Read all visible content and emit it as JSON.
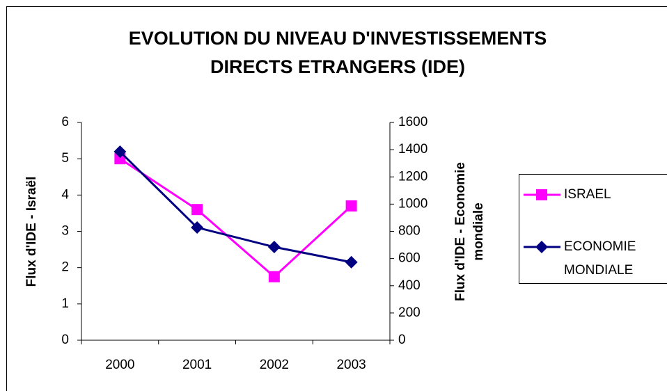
{
  "chart_data": {
    "type": "line",
    "title": [
      "EVOLUTION DU NIVEAU D'INVESTISSEMENTS",
      "DIRECTS ETRANGERS (IDE)"
    ],
    "y_label": "Flux d'IDE - Israël",
    "y2_label": [
      "Flux d'IDE - Economie",
      "mondiale"
    ],
    "categories": [
      "2000",
      "2001",
      "2002",
      "2003"
    ],
    "series": [
      {
        "name": "ISRAEL",
        "color": "#ff00ff",
        "marker": "square",
        "values": [
          5.0,
          3.6,
          1.75,
          3.7
        ]
      },
      {
        "name": "ECONOMIE MONDIALE",
        "color": "#000080",
        "marker": "diamond",
        "axis": "y2",
        "values": [
          1385,
          828,
          685,
          573
        ]
      }
    ],
    "ylim": [
      0,
      6
    ],
    "yticks": [
      0,
      1,
      2,
      3,
      4,
      5,
      6
    ],
    "y2lim": [
      0,
      1600
    ],
    "y2ticks": [
      0,
      200,
      400,
      600,
      800,
      1000,
      1200,
      1400,
      1600
    ],
    "grid": false,
    "legend": "right"
  }
}
